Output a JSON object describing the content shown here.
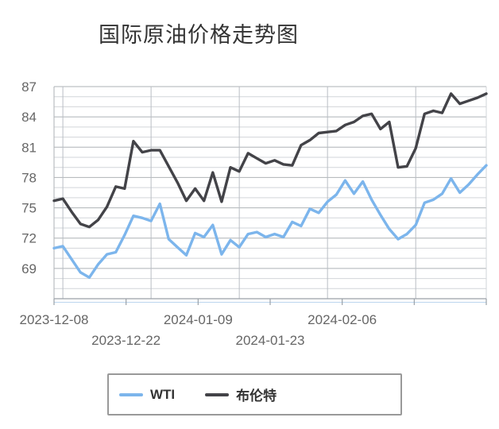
{
  "title": {
    "text": "国际原油价格走势图",
    "color": "#333333"
  },
  "legend": {
    "border_color": "#999999",
    "items": [
      {
        "label": "WTI",
        "color": "#7cb5ec"
      },
      {
        "label": "布伦特",
        "color": "#434348"
      }
    ]
  },
  "colors": {
    "background": "#ffffff",
    "axis_label": "#666666",
    "grid_minor": "#d2d5d9",
    "grid_major": "#aeb2b6",
    "grid_vertical": "#b9bec4",
    "axis_line": "#9aa1a8",
    "sub_axis_line": "#bcd6ee",
    "wti_line": "#7cb5ec",
    "brent_line": "#434348"
  },
  "chart_data": {
    "type": "line",
    "title": "国际原油价格走势图",
    "xlabel": "",
    "ylabel": "",
    "grid": "on",
    "legend_position": "bottom",
    "y_min": 66,
    "y_max": 87,
    "y_tick_labels": [
      "69",
      "72",
      "75",
      "78",
      "81",
      "84",
      "87"
    ],
    "y_tick_values": [
      69,
      72,
      75,
      78,
      81,
      84,
      87
    ],
    "x_point_count": 50,
    "x_gridline_indices": [
      1,
      11,
      21,
      31,
      41
    ],
    "x_tick_labels": [
      "2023-12-08",
      "2023-12-22",
      "2024-01-09",
      "2024-01-23",
      "2024-02-06"
    ],
    "x_tick_label_rows": [
      0,
      1,
      0,
      1,
      0
    ],
    "series": [
      {
        "name": "WTI",
        "color": "#7cb5ec",
        "values": [
          71.0,
          71.2,
          69.9,
          68.6,
          68.1,
          69.4,
          70.4,
          70.6,
          72.3,
          74.2,
          74.0,
          73.7,
          75.4,
          71.9,
          71.1,
          70.3,
          72.5,
          72.1,
          73.3,
          70.4,
          71.8,
          71.1,
          72.4,
          72.6,
          72.1,
          72.4,
          72.1,
          73.6,
          73.2,
          74.9,
          74.5,
          75.6,
          76.3,
          77.7,
          76.4,
          77.6,
          75.8,
          74.3,
          72.9,
          71.9,
          72.4,
          73.3,
          75.5,
          75.8,
          76.4,
          77.9,
          76.5,
          77.3,
          78.3,
          79.2
        ]
      },
      {
        "name": "布伦特",
        "color": "#434348",
        "values": [
          75.7,
          75.9,
          74.6,
          73.4,
          73.1,
          73.8,
          75.1,
          77.1,
          76.9,
          81.6,
          80.5,
          80.7,
          80.7,
          79.1,
          77.5,
          75.7,
          76.9,
          75.7,
          78.5,
          75.6,
          79.0,
          78.6,
          80.4,
          79.9,
          79.4,
          79.7,
          79.3,
          79.2,
          81.2,
          81.7,
          82.4,
          82.5,
          82.6,
          83.2,
          83.5,
          84.1,
          84.3,
          82.8,
          83.5,
          79.0,
          79.1,
          80.9,
          84.3,
          84.6,
          84.4,
          86.3,
          85.3,
          85.6,
          85.9,
          86.3
        ]
      }
    ]
  }
}
